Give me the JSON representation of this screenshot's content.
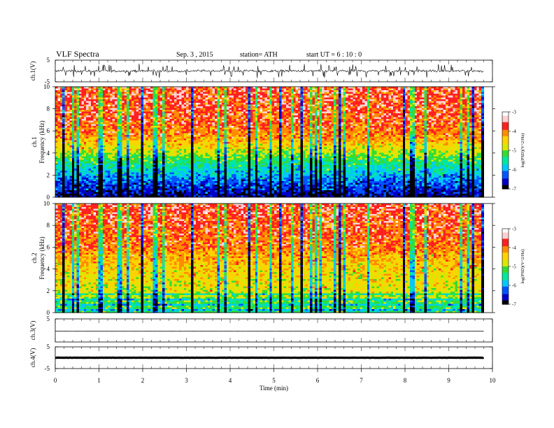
{
  "header": {
    "title": "VLF  Spectra",
    "date": "Sep. 3  , 2015",
    "station": "station= ATH",
    "start": "start  UT  =   6  : 10 : 0"
  },
  "chart_data": [
    {
      "type": "line",
      "panel": "ch1-waveform",
      "ylabel": "ch.1(V)",
      "ylim": [
        -5,
        5
      ],
      "y_ticks": [
        "5",
        "-5"
      ],
      "description_values": {
        "baseline": 0.0,
        "typical_amplitude": 1.2,
        "spike_amplitude": 3.0
      }
    },
    {
      "type": "heatmap",
      "panel": "ch1-spectrogram",
      "ylabel": "ch.1\nFrequency (kHz)",
      "ylim": [
        0,
        10
      ],
      "y_ticks": [
        "0",
        "2",
        "4",
        "6",
        "8",
        "10"
      ],
      "colorbar": {
        "label": "log(PSD)(V^2/Hz)",
        "range": [
          -7,
          -3
        ],
        "ticks": [
          "-3",
          "-4",
          "-5",
          "-6",
          "-7"
        ]
      },
      "psd_profile": {
        "freq_khz": [
          0,
          0.5,
          1.5,
          2.5,
          3.5,
          4.5,
          5.5,
          7,
          10
        ],
        "log_psd": [
          -6.8,
          -6.6,
          -6.2,
          -5.7,
          -5.2,
          -4.6,
          -4.1,
          -3.8,
          -3.7
        ]
      }
    },
    {
      "type": "heatmap",
      "panel": "ch2-spectrogram",
      "ylabel": "ch.2\nFrequency (kHz)",
      "ylim": [
        0,
        10
      ],
      "y_ticks": [
        "0",
        "2",
        "4",
        "6",
        "8",
        "10"
      ],
      "colorbar": {
        "label": "log(PSD)(V^2/Hz)",
        "range": [
          -7,
          -3
        ],
        "ticks": [
          "-3",
          "-4",
          "-5",
          "-6",
          "-7"
        ]
      },
      "psd_profile": {
        "freq_khz": [
          0,
          1,
          2,
          3,
          4,
          5,
          6,
          8,
          10
        ],
        "log_psd": [
          -5.4,
          -5.2,
          -4.7,
          -4.6,
          -4.5,
          -4.3,
          -4.0,
          -3.8,
          -3.7
        ]
      }
    },
    {
      "type": "line",
      "panel": "ch3-waveform",
      "ylabel": "ch.3(V)",
      "ylim": [
        -5,
        5
      ],
      "y_ticks": [
        "5"
      ],
      "description_values": {
        "baseline": -0.3
      }
    },
    {
      "type": "line",
      "panel": "ch4-waveform",
      "ylabel": "ch.4(V)",
      "ylim": [
        -5,
        5
      ],
      "y_ticks": [
        "5",
        "-5"
      ],
      "description_values": {
        "baseline": 0.0
      }
    }
  ],
  "x_axis": {
    "label": "Time  (min)",
    "range": [
      0,
      10
    ],
    "data_end": 9.8,
    "ticks": [
      "0",
      "1",
      "2",
      "3",
      "4",
      "5",
      "6",
      "7",
      "8",
      "9",
      "10"
    ]
  },
  "colors": {
    "ink": "#000000",
    "colormap": [
      "#000000",
      "#0000c8",
      "#0055ff",
      "#00c8ff",
      "#00e8a0",
      "#33dd33",
      "#d8e800",
      "#ffd200",
      "#ff8c00",
      "#ff2020",
      "#ffd0d0",
      "#ffffff"
    ]
  }
}
